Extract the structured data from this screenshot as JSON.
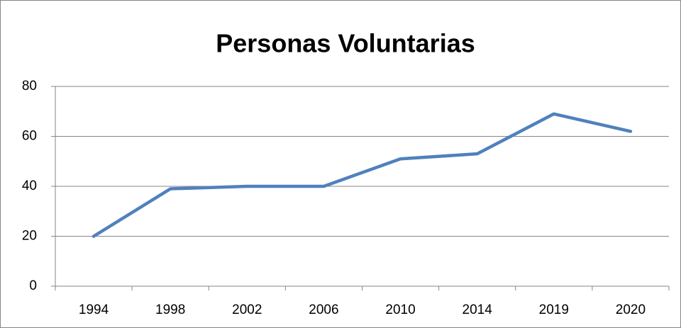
{
  "chart_data": {
    "type": "line",
    "title": "Personas Voluntarias",
    "categories": [
      "1994",
      "1998",
      "2002",
      "2006",
      "2010",
      "2014",
      "2019",
      "2020"
    ],
    "values": [
      20,
      39,
      40,
      40,
      51,
      53,
      69,
      62
    ],
    "color": "#4f81bd",
    "ylim": [
      0,
      80
    ],
    "yticks": [
      0,
      20,
      40,
      60,
      80
    ],
    "grid": true
  }
}
